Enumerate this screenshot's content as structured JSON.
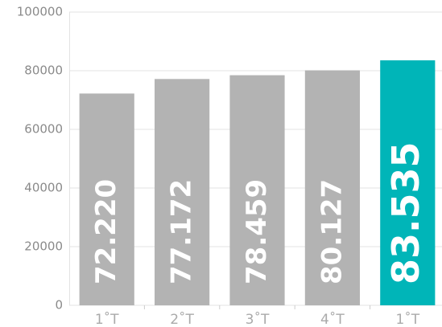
{
  "chart_data": {
    "type": "bar",
    "categories": [
      "1˚T",
      "2˚T",
      "3˚T",
      "4˚T",
      "1˚T"
    ],
    "values": [
      72220,
      77172,
      78459,
      80127,
      83535
    ],
    "value_labels": [
      "72.220",
      "77.172",
      "78.459",
      "80.127",
      "83.535"
    ],
    "color": "#b3b3b3",
    "highlight": 4,
    "highlight_color": "#00b5b8",
    "ylim": [
      0,
      100000
    ],
    "yticks": [
      0,
      20000,
      40000,
      60000,
      80000,
      100000
    ],
    "grid": true
  }
}
